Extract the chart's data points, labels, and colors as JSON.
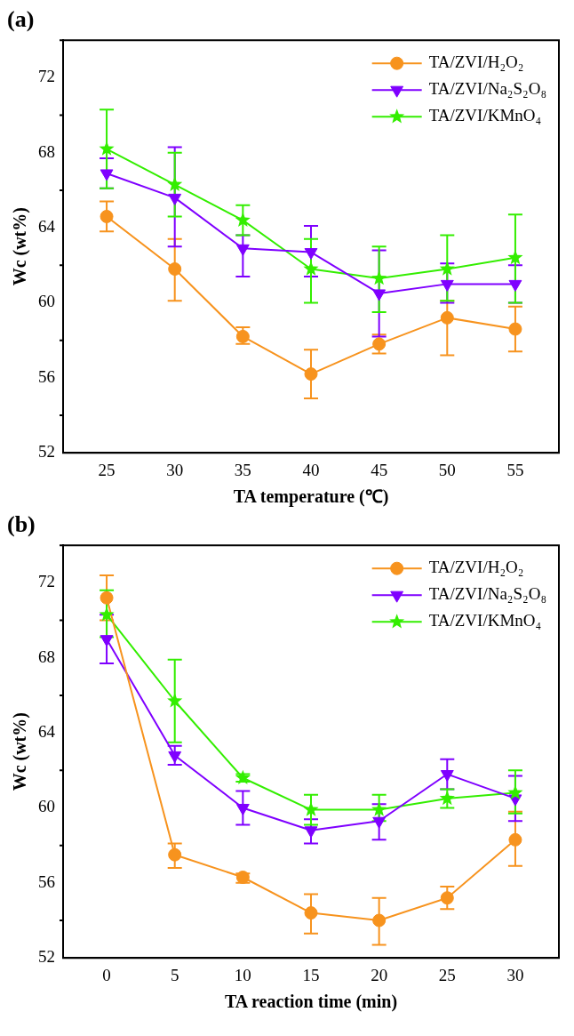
{
  "chart_data": [
    {
      "type": "line",
      "title": "(a)",
      "xlabel": "TA temperature (℃)",
      "ylabel": "Wc (wt%)",
      "x": [
        25,
        30,
        35,
        40,
        45,
        50,
        55
      ],
      "xlim": [
        21.8,
        58.2
      ],
      "xticks": [
        25,
        30,
        35,
        40,
        45,
        50,
        55
      ],
      "ylim": [
        52,
        74
      ],
      "yticks": [
        52,
        {
          "value": 54,
          "label": null
        },
        56,
        {
          "value": 58,
          "label": null
        },
        60,
        {
          "value": 62,
          "label": null
        },
        64,
        {
          "value": 66,
          "label": null
        },
        68,
        {
          "value": 70,
          "label": null
        },
        72,
        {
          "value": 74,
          "label": null
        }
      ],
      "grid": false,
      "legend": "top right",
      "line_style": "solid",
      "series": [
        {
          "name": "TA/ZVI/H₂O₂",
          "color": "#f7931e",
          "marker": "circle",
          "values": [
            64.6,
            61.8,
            58.2,
            56.2,
            57.8,
            59.2,
            58.6
          ],
          "errors": [
            [
              63.8,
              65.4
            ],
            [
              60.1,
              63.4
            ],
            [
              57.8,
              58.7
            ],
            [
              54.9,
              57.5
            ],
            [
              57.3,
              58.3
            ],
            [
              57.2,
              60.1
            ],
            [
              57.4,
              59.8
            ]
          ]
        },
        {
          "name": "TA/ZVI/Na₂S₂O₈",
          "color": "#7f00ff",
          "marker": "triangle",
          "values": [
            66.9,
            65.6,
            62.9,
            62.7,
            60.5,
            61.0,
            61.0
          ],
          "errors": [
            [
              66.1,
              67.7
            ],
            [
              63.0,
              68.3
            ],
            [
              61.4,
              63.6
            ],
            [
              61.4,
              64.1
            ],
            [
              58.2,
              62.8
            ],
            [
              60.0,
              62.1
            ],
            [
              60.0,
              62.0
            ]
          ]
        },
        {
          "name": "TA/ZVI/KMnO₄",
          "color": "#33ee00",
          "marker": "star",
          "values": [
            68.2,
            66.3,
            64.4,
            61.8,
            61.3,
            61.8,
            62.4
          ],
          "errors": [
            [
              66.1,
              70.3
            ],
            [
              64.6,
              68.0
            ],
            [
              63.6,
              65.2
            ],
            [
              60.0,
              63.4
            ],
            [
              59.5,
              63.0
            ],
            [
              60.1,
              63.6
            ],
            [
              60.0,
              64.7
            ]
          ]
        }
      ]
    },
    {
      "type": "line",
      "title": "(b)",
      "xlabel": "TA reaction time (min)",
      "ylabel": "Wc (wt%)",
      "x": [
        0,
        5,
        10,
        15,
        20,
        25,
        30
      ],
      "xlim": [
        -3.2,
        33.2
      ],
      "xticks": [
        0,
        5,
        10,
        15,
        20,
        25,
        30
      ],
      "ylim": [
        52,
        74
      ],
      "yticks": [
        52,
        {
          "value": 54,
          "label": null
        },
        56,
        {
          "value": 58,
          "label": null
        },
        60,
        {
          "value": 62,
          "label": null
        },
        64,
        {
          "value": 66,
          "label": null
        },
        68,
        {
          "value": 70,
          "label": null
        },
        72,
        {
          "value": 74,
          "label": null
        }
      ],
      "grid": false,
      "legend": "top right",
      "line_style": "solid",
      "series": [
        {
          "name": "TA/ZVI/H₂O₂",
          "color": "#f7931e",
          "marker": "circle",
          "values": [
            71.2,
            57.5,
            56.3,
            54.4,
            54.0,
            55.2,
            58.3
          ],
          "errors": [
            [
              70.0,
              72.4
            ],
            [
              56.8,
              58.1
            ],
            [
              56.0,
              56.5
            ],
            [
              53.3,
              55.4
            ],
            [
              52.7,
              55.2
            ],
            [
              54.6,
              55.8
            ],
            [
              56.9,
              59.8
            ]
          ]
        },
        {
          "name": "TA/ZVI/Na₂S₂O₈",
          "color": "#7f00ff",
          "marker": "triangle",
          "values": [
            69.0,
            62.8,
            60.0,
            58.8,
            59.3,
            61.8,
            60.5
          ],
          "errors": [
            [
              67.7,
              70.3
            ],
            [
              62.3,
              63.3
            ],
            [
              59.1,
              60.9
            ],
            [
              58.1,
              59.4
            ],
            [
              58.3,
              60.2
            ],
            [
              61.0,
              62.6
            ],
            [
              59.3,
              61.7
            ]
          ]
        },
        {
          "name": "TA/ZVI/KMnO₄",
          "color": "#33ee00",
          "marker": "star",
          "values": [
            70.3,
            65.7,
            61.6,
            59.9,
            59.9,
            60.5,
            60.8
          ],
          "errors": [
            [
              69.1,
              71.6
            ],
            [
              63.5,
              67.9
            ],
            [
              61.4,
              61.8
            ],
            [
              59.1,
              60.7
            ],
            [
              59.3,
              60.7
            ],
            [
              60.0,
              61.0
            ],
            [
              59.7,
              62.0
            ]
          ]
        }
      ]
    }
  ]
}
